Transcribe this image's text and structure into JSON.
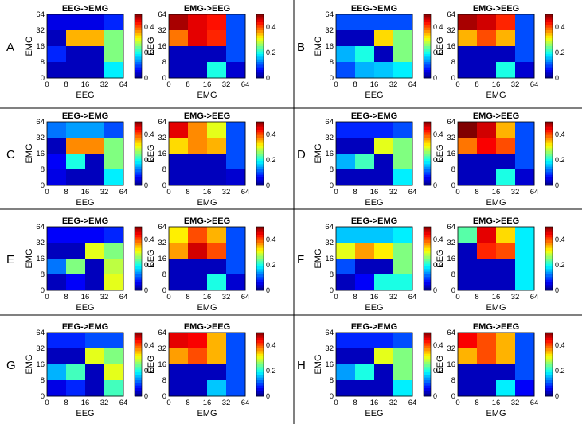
{
  "figure": {
    "dividers": {
      "color": "#000000"
    }
  },
  "chart_data": {
    "type": "heatmap",
    "colormap": "jet",
    "clim": [
      0,
      0.5
    ],
    "colorbar_ticks": [
      "0",
      "0.2",
      "0.4"
    ],
    "bins": [
      "0",
      "8",
      "16",
      "32",
      "64"
    ],
    "panels": [
      {
        "letter": "A",
        "left": {
          "title": "EEG->EMG",
          "xlabel": "EEG",
          "ylabel": "EMG",
          "values": [
            [
              0.05,
              0.05,
              0.05,
              0.08
            ],
            [
              0.03,
              0.35,
              0.35,
              0.25
            ],
            [
              0.08,
              0.03,
              0.03,
              0.25
            ],
            [
              0.03,
              0.03,
              0.03,
              0.18
            ]
          ]
        },
        "right": {
          "title": "EMG->EEG",
          "xlabel": "EMG",
          "ylabel": "EEG",
          "values": [
            [
              0.48,
              0.45,
              0.43,
              0.1
            ],
            [
              0.38,
              0.45,
              0.42,
              0.1
            ],
            [
              0.03,
              0.03,
              0.03,
              0.1
            ],
            [
              0.03,
              0.03,
              0.2,
              0.04
            ]
          ]
        }
      },
      {
        "letter": "B",
        "left": {
          "title": "EEG->EMG",
          "xlabel": "EEG",
          "ylabel": "EMG",
          "values": [
            [
              0.1,
              0.1,
              0.1,
              0.1
            ],
            [
              0.03,
              0.03,
              0.33,
              0.25
            ],
            [
              0.15,
              0.2,
              0.03,
              0.25
            ],
            [
              0.1,
              0.15,
              0.16,
              0.18
            ]
          ]
        },
        "right": {
          "title": "EMG->EEG",
          "xlabel": "EMG",
          "ylabel": "EEG",
          "values": [
            [
              0.48,
              0.46,
              0.42,
              0.1
            ],
            [
              0.35,
              0.4,
              0.35,
              0.1
            ],
            [
              0.03,
              0.03,
              0.03,
              0.1
            ],
            [
              0.03,
              0.03,
              0.2,
              0.04
            ]
          ]
        }
      },
      {
        "letter": "C",
        "left": {
          "title": "EEG->EMG",
          "xlabel": "EEG",
          "ylabel": "EMG",
          "values": [
            [
              0.12,
              0.14,
              0.14,
              0.1
            ],
            [
              0.03,
              0.37,
              0.37,
              0.25
            ],
            [
              0.06,
              0.2,
              0.03,
              0.25
            ],
            [
              0.05,
              0.03,
              0.03,
              0.18
            ]
          ]
        },
        "right": {
          "title": "EMG->EEG",
          "xlabel": "EMG",
          "ylabel": "EEG",
          "values": [
            [
              0.45,
              0.37,
              0.3,
              0.1
            ],
            [
              0.33,
              0.37,
              0.35,
              0.1
            ],
            [
              0.03,
              0.03,
              0.03,
              0.1
            ],
            [
              0.03,
              0.03,
              0.03,
              0.04
            ]
          ]
        }
      },
      {
        "letter": "D",
        "left": {
          "title": "EEG->EMG",
          "xlabel": "EEG",
          "ylabel": "EMG",
          "values": [
            [
              0.08,
              0.08,
              0.08,
              0.1
            ],
            [
              0.03,
              0.03,
              0.3,
              0.25
            ],
            [
              0.15,
              0.22,
              0.03,
              0.25
            ],
            [
              0.03,
              0.03,
              0.03,
              0.18
            ]
          ]
        },
        "right": {
          "title": "EMG->EEG",
          "xlabel": "EMG",
          "ylabel": "EEG",
          "values": [
            [
              0.5,
              0.46,
              0.35,
              0.1
            ],
            [
              0.38,
              0.44,
              0.4,
              0.1
            ],
            [
              0.03,
              0.03,
              0.03,
              0.1
            ],
            [
              0.03,
              0.03,
              0.2,
              0.04
            ]
          ]
        }
      },
      {
        "letter": "E",
        "left": {
          "title": "EEG->EMG",
          "xlabel": "EEG",
          "ylabel": "EMG",
          "values": [
            [
              0.06,
              0.06,
              0.06,
              0.08
            ],
            [
              0.03,
              0.03,
              0.3,
              0.25
            ],
            [
              0.12,
              0.25,
              0.03,
              0.28
            ],
            [
              0.03,
              0.06,
              0.03,
              0.3
            ]
          ]
        },
        "right": {
          "title": "EMG->EEG",
          "xlabel": "EMG",
          "ylabel": "EEG",
          "values": [
            [
              0.32,
              0.4,
              0.35,
              0.1
            ],
            [
              0.36,
              0.46,
              0.4,
              0.1
            ],
            [
              0.03,
              0.03,
              0.03,
              0.1
            ],
            [
              0.03,
              0.03,
              0.2,
              0.04
            ]
          ]
        }
      },
      {
        "letter": "F",
        "left": {
          "title": "EEG->EMG",
          "xlabel": "EEG",
          "ylabel": "EMG",
          "values": [
            [
              0.16,
              0.16,
              0.16,
              0.18
            ],
            [
              0.3,
              0.36,
              0.32,
              0.25
            ],
            [
              0.1,
              0.03,
              0.03,
              0.25
            ],
            [
              0.03,
              0.06,
              0.2,
              0.2
            ]
          ]
        },
        "right": {
          "title": "EMG->EEG",
          "xlabel": "EMG",
          "ylabel": "EEG",
          "values": [
            [
              0.23,
              0.45,
              0.33,
              0.18
            ],
            [
              0.03,
              0.42,
              0.4,
              0.18
            ],
            [
              0.03,
              0.03,
              0.03,
              0.18
            ],
            [
              0.03,
              0.03,
              0.03,
              0.18
            ]
          ]
        }
      },
      {
        "letter": "G",
        "left": {
          "title": "EEG->EMG",
          "xlabel": "EEG",
          "ylabel": "EMG",
          "values": [
            [
              0.08,
              0.08,
              0.1,
              0.1
            ],
            [
              0.03,
              0.03,
              0.3,
              0.25
            ],
            [
              0.15,
              0.22,
              0.03,
              0.3
            ],
            [
              0.05,
              0.08,
              0.03,
              0.22
            ]
          ]
        },
        "right": {
          "title": "EMG->EEG",
          "xlabel": "EMG",
          "ylabel": "EEG",
          "values": [
            [
              0.45,
              0.44,
              0.35,
              0.1
            ],
            [
              0.36,
              0.4,
              0.35,
              0.1
            ],
            [
              0.03,
              0.03,
              0.03,
              0.1
            ],
            [
              0.03,
              0.03,
              0.16,
              0.1
            ]
          ]
        }
      },
      {
        "letter": "H",
        "left": {
          "title": "EEG->EMG",
          "xlabel": "EEG",
          "ylabel": "EMG",
          "values": [
            [
              0.08,
              0.08,
              0.08,
              0.1
            ],
            [
              0.03,
              0.03,
              0.3,
              0.25
            ],
            [
              0.14,
              0.2,
              0.03,
              0.25
            ],
            [
              0.03,
              0.03,
              0.03,
              0.18
            ]
          ]
        },
        "right": {
          "title": "EMG->EEG",
          "xlabel": "EMG",
          "ylabel": "EEG",
          "values": [
            [
              0.44,
              0.4,
              0.35,
              0.1
            ],
            [
              0.35,
              0.4,
              0.35,
              0.1
            ],
            [
              0.03,
              0.03,
              0.03,
              0.1
            ],
            [
              0.03,
              0.03,
              0.18,
              0.06
            ]
          ]
        }
      }
    ]
  }
}
